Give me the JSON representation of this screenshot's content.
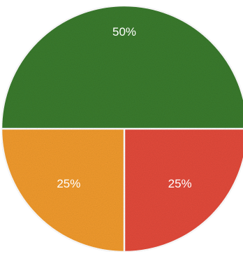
{
  "chart_data": {
    "type": "pie",
    "title": "",
    "slices": [
      {
        "label": "50%",
        "value": 50,
        "color": "#3a7a2e"
      },
      {
        "label": "25%",
        "value": 25,
        "color": "#e24a3b"
      },
      {
        "label": "25%",
        "value": 25,
        "color": "#f09a2e"
      }
    ],
    "start_angle_deg": 180,
    "direction": "clockwise",
    "legend": "none"
  }
}
